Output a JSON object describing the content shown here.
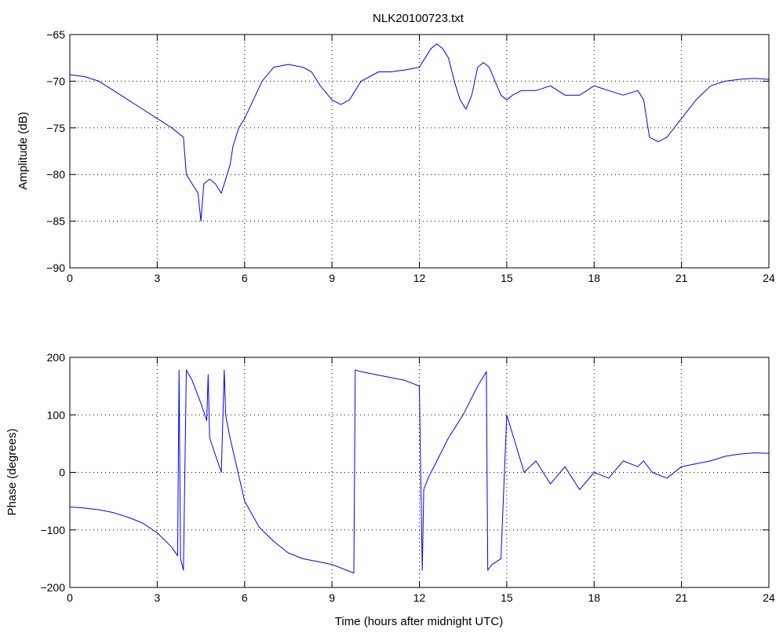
{
  "title": "NLK20100723.txt",
  "accent_color": "#0000ff",
  "chart_data": [
    {
      "type": "line",
      "title": "NLK20100723.txt",
      "xlabel": "",
      "ylabel": "Amplitude (dB)",
      "xlim": [
        0,
        24
      ],
      "ylim": [
        -90,
        -65
      ],
      "xticks": [
        0,
        3,
        6,
        9,
        12,
        15,
        18,
        21,
        24
      ],
      "yticks": [
        -90,
        -85,
        -80,
        -75,
        -70,
        -65
      ],
      "grid": true,
      "color": "#0000ff",
      "series": [
        {
          "x": [
            0,
            0.5,
            1.0,
            1.5,
            2.0,
            2.5,
            3.0,
            3.5,
            3.9,
            4.0,
            4.2,
            4.4,
            4.5,
            4.6,
            4.8,
            5.0,
            5.2,
            5.4,
            5.5,
            5.6,
            5.8,
            6.0,
            6.3,
            6.6,
            7.0,
            7.5,
            8.0,
            8.3,
            8.6,
            9.0,
            9.3,
            9.6,
            10.0,
            10.3,
            10.6,
            11.0,
            11.5,
            12.0,
            12.2,
            12.4,
            12.6,
            12.8,
            13.0,
            13.2,
            13.4,
            13.6,
            13.8,
            14.0,
            14.2,
            14.4,
            14.6,
            14.8,
            15.0,
            15.2,
            15.5,
            16.0,
            16.5,
            17.0,
            17.5,
            18.0,
            18.5,
            19.0,
            19.5,
            19.7,
            19.9,
            20.2,
            20.5,
            21.0,
            21.5,
            22.0,
            22.5,
            23.0,
            23.5,
            24.0
          ],
          "values": [
            -69.3,
            -69.5,
            -70.0,
            -71.0,
            -72.0,
            -73.0,
            -74.0,
            -75.0,
            -76.0,
            -80.0,
            -81.0,
            -82.0,
            -85.0,
            -81.0,
            -80.5,
            -81.0,
            -82.0,
            -80.0,
            -79.0,
            -77.0,
            -75.0,
            -74.0,
            -72.0,
            -70.0,
            -68.5,
            -68.2,
            -68.5,
            -69.0,
            -70.5,
            -72.0,
            -72.5,
            -72.0,
            -70.0,
            -69.5,
            -69.0,
            -69.0,
            -68.8,
            -68.5,
            -67.5,
            -66.5,
            -66.0,
            -66.5,
            -67.5,
            -70.0,
            -72.0,
            -73.0,
            -71.5,
            -68.5,
            -68.0,
            -68.5,
            -70.0,
            -71.5,
            -72.0,
            -71.5,
            -71.0,
            -71.0,
            -70.5,
            -71.5,
            -71.5,
            -70.5,
            -71.0,
            -71.5,
            -71.0,
            -72.0,
            -76.0,
            -76.5,
            -76.0,
            -74.0,
            -72.0,
            -70.5,
            -70.0,
            -69.8,
            -69.7,
            -69.8
          ]
        }
      ]
    },
    {
      "type": "line",
      "title": "",
      "xlabel": "Time (hours after midnight UTC)",
      "ylabel": "Phase (degrees)",
      "xlim": [
        0,
        24
      ],
      "ylim": [
        -200,
        200
      ],
      "xticks": [
        0,
        3,
        6,
        9,
        12,
        15,
        18,
        21,
        24
      ],
      "yticks": [
        -200,
        -100,
        0,
        100,
        200
      ],
      "grid": true,
      "color": "#0000ff",
      "series": [
        {
          "x": [
            0,
            0.5,
            1.0,
            1.5,
            2.0,
            2.5,
            3.0,
            3.5,
            3.7,
            3.75,
            3.8,
            3.9,
            4.0,
            4.2,
            4.5,
            4.7,
            4.75,
            4.8,
            5.0,
            5.2,
            5.3,
            5.35,
            5.5,
            6.0,
            6.5,
            7.0,
            7.5,
            8.0,
            8.5,
            9.0,
            9.5,
            9.75,
            9.8,
            10.0,
            10.5,
            11.0,
            11.5,
            12.0,
            12.1,
            12.15,
            12.3,
            12.6,
            13.0,
            13.5,
            14.0,
            14.3,
            14.35,
            14.5,
            14.8,
            15.0,
            15.3,
            15.6,
            16.0,
            16.5,
            17.0,
            17.5,
            18.0,
            18.5,
            19.0,
            19.5,
            19.7,
            20.0,
            20.5,
            21.0,
            21.5,
            22.0,
            22.5,
            23.0,
            23.5,
            24.0
          ],
          "values": [
            -60,
            -62,
            -65,
            -70,
            -78,
            -88,
            -105,
            -130,
            -145,
            178,
            -150,
            -170,
            178,
            160,
            120,
            90,
            170,
            60,
            30,
            0,
            178,
            100,
            60,
            -50,
            -95,
            -120,
            -140,
            -150,
            -155,
            -160,
            -170,
            -175,
            178,
            175,
            170,
            165,
            160,
            150,
            -170,
            -30,
            -10,
            20,
            60,
            100,
            150,
            175,
            -170,
            -160,
            -150,
            100,
            50,
            0,
            20,
            -20,
            10,
            -30,
            0,
            -10,
            20,
            10,
            20,
            0,
            -10,
            10,
            15,
            20,
            28,
            32,
            34,
            33
          ]
        }
      ]
    }
  ]
}
